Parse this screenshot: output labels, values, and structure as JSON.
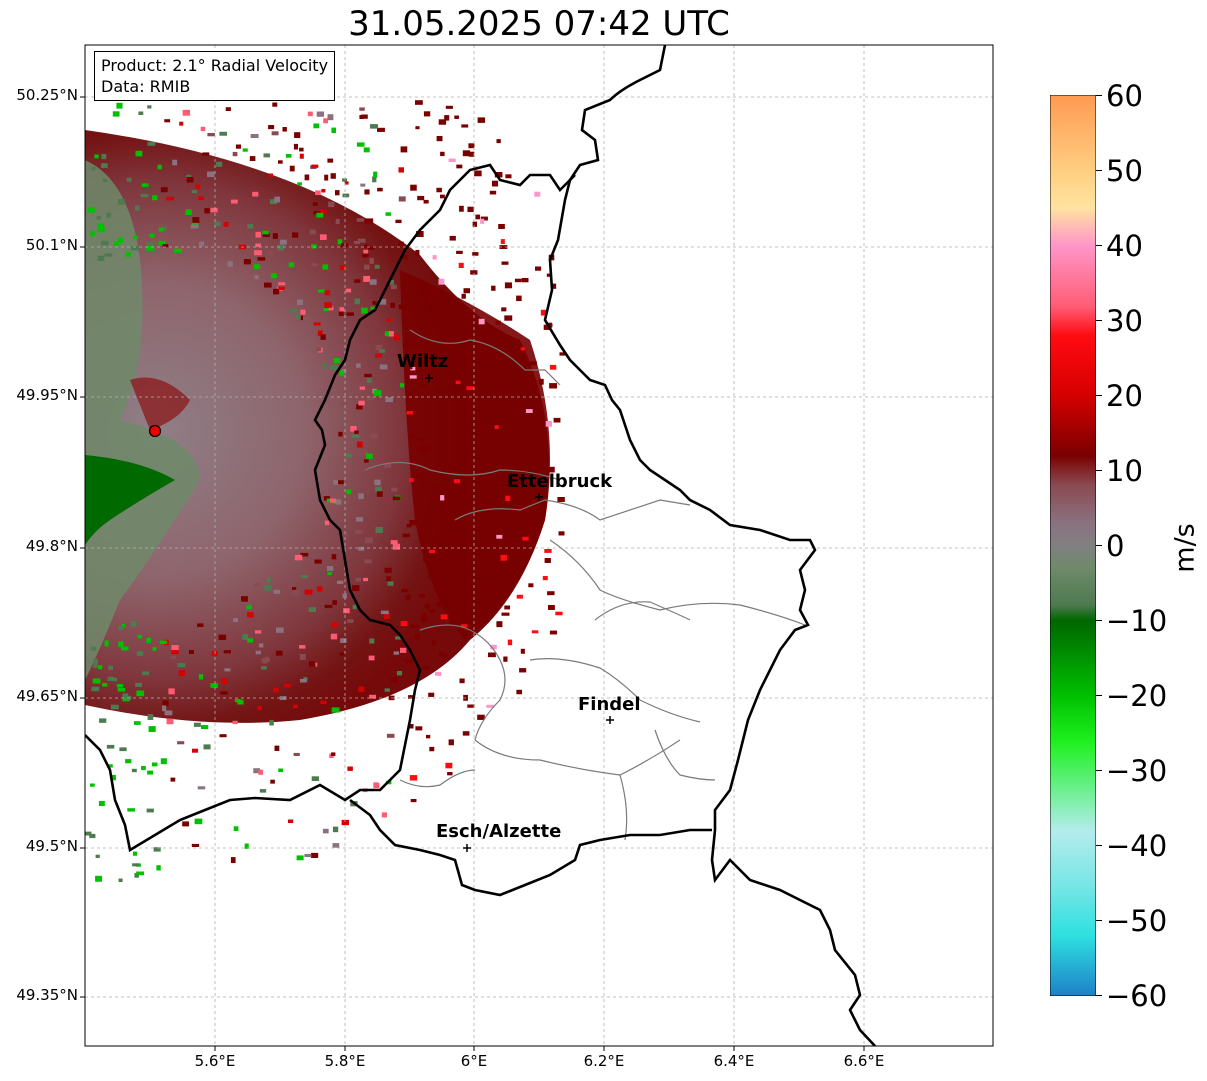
{
  "title": "31.05.2025 07:42 UTC",
  "info_box": {
    "line1": "Product: 2.1° Radial Velocity",
    "line2": "Data: RMIB"
  },
  "map": {
    "lat_labels": [
      "50.25°N",
      "50.1°N",
      "49.95°N",
      "49.8°N",
      "49.65°N",
      "49.5°N",
      "49.35°N"
    ],
    "lon_labels": [
      "5.6°E",
      "5.8°E",
      "6°E",
      "6.2°E",
      "6.4°E",
      "6.6°E"
    ],
    "radar_site": "red-circle-marker",
    "cities": [
      {
        "name": "Wiltz"
      },
      {
        "name": "Ettelbruck"
      },
      {
        "name": "Findel"
      },
      {
        "name": "Esch/Alzette"
      }
    ]
  },
  "colorbar": {
    "unit": "m/s",
    "ticks": [
      "60",
      "50",
      "40",
      "30",
      "20",
      "10",
      "0",
      "−10",
      "−20",
      "−30",
      "−40",
      "−50",
      "−60"
    ],
    "range": [
      -60,
      60
    ],
    "colors": {
      "v60": "#ff9a52",
      "v50": "#ffce80",
      "v45": "#ffe3a0",
      "v40": "#ff96c8",
      "v32": "#ff5c74",
      "v28": "#ff0b12",
      "v20": "#d60000",
      "v12": "#7a0000",
      "v8": "#8a4a52",
      "v3": "#8a7280",
      "v0": "#808080",
      "vm3": "#6e8a6a",
      "vm8": "#4e7a50",
      "vm10": "#006600",
      "vm20": "#00c000",
      "vm26": "#1ef01e",
      "vm32": "#66f086",
      "vm38": "#b4ecec",
      "vm45": "#7ae6e6",
      "vm52": "#2ee0e0",
      "vm60": "#1e80c8"
    }
  }
}
